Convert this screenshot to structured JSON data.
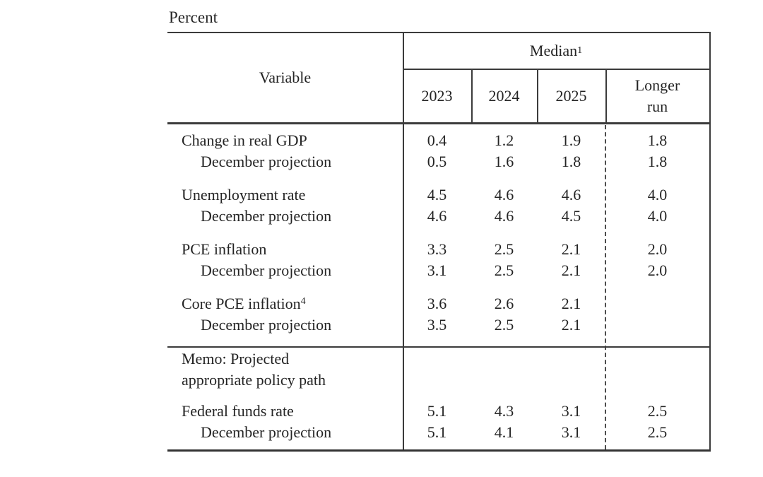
{
  "page": {
    "unit_label": "Percent"
  },
  "colors": {
    "text": "#242424",
    "rule_line": "#3b3b3b",
    "background": "#ffffff"
  },
  "table": {
    "header": {
      "variable_label": "Variable",
      "median_label": "Median",
      "median_footnote": "1",
      "years": [
        "2023",
        "2024",
        "2025"
      ],
      "longer_run_line1": "Longer",
      "longer_run_line2": "run"
    },
    "rows": [
      {
        "label": "Change in real GDP",
        "values": [
          "0.4",
          "1.2",
          "1.9",
          "1.8"
        ]
      },
      {
        "label": "December projection",
        "values": [
          "0.5",
          "1.6",
          "1.8",
          "1.8"
        ]
      },
      {
        "label": "Unemployment rate",
        "values": [
          "4.5",
          "4.6",
          "4.6",
          "4.0"
        ]
      },
      {
        "label": "December projection",
        "values": [
          "4.6",
          "4.6",
          "4.5",
          "4.0"
        ]
      },
      {
        "label": "PCE inflation",
        "values": [
          "3.3",
          "2.5",
          "2.1",
          "2.0"
        ]
      },
      {
        "label": "December projection",
        "values": [
          "3.1",
          "2.5",
          "2.1",
          "2.0"
        ]
      },
      {
        "label": "Core PCE inflation",
        "footnote": "4",
        "values": [
          "3.6",
          "2.6",
          "2.1",
          ""
        ]
      },
      {
        "label": "December projection",
        "values": [
          "3.5",
          "2.5",
          "2.1",
          ""
        ]
      },
      {
        "label": "Federal funds rate",
        "values": [
          "5.1",
          "4.3",
          "3.1",
          "2.5"
        ]
      },
      {
        "label": "December projection",
        "values": [
          "5.1",
          "4.1",
          "3.1",
          "2.5"
        ]
      }
    ],
    "memo": {
      "line1": "Memo: Projected",
      "line2": "appropriate policy path"
    }
  }
}
